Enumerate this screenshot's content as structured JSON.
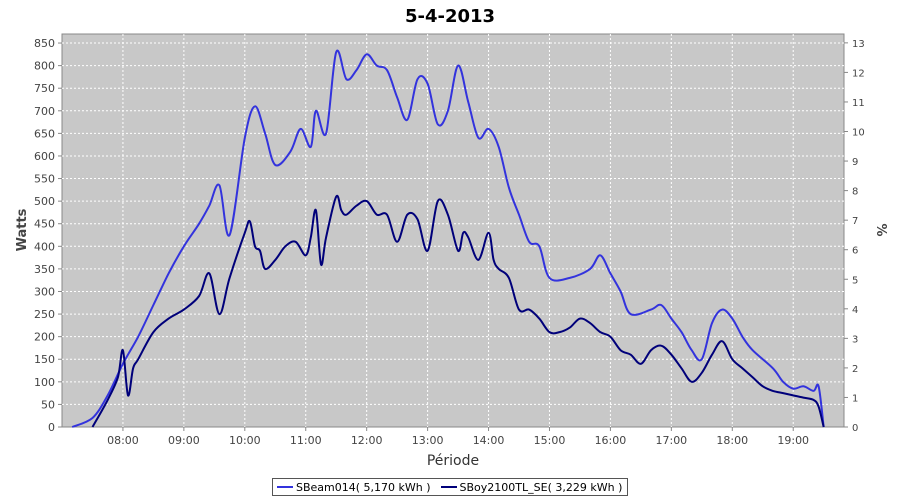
{
  "chart_data": {
    "type": "line",
    "title": "5-4-2013",
    "xlabel": "Période",
    "ylabel": "Watts",
    "y2label": "%",
    "x_ticks": [
      "08:00",
      "09:00",
      "10:00",
      "11:00",
      "12:00",
      "13:00",
      "14:00",
      "15:00",
      "16:00",
      "17:00",
      "18:00",
      "19:00"
    ],
    "y_ticks": [
      "0",
      "50",
      "100",
      "150",
      "200",
      "250",
      "300",
      "350",
      "400",
      "450",
      "500",
      "550",
      "600",
      "650",
      "700",
      "750",
      "800",
      "850"
    ],
    "y2_ticks": [
      "0",
      "1",
      "2",
      "3",
      "4",
      "5",
      "6",
      "7",
      "8",
      "9",
      "10",
      "11",
      "12",
      "13"
    ],
    "xlim": [
      "07:00",
      "19:50"
    ],
    "ylim": [
      0,
      870
    ],
    "y2lim": [
      0,
      13.3
    ],
    "grid": true,
    "legend_position": "bottom",
    "series": [
      {
        "name": "SBeam014( 5,170 kWh )",
        "color": "#3333dd",
        "x": [
          "07:10",
          "07:30",
          "07:45",
          "08:00",
          "08:15",
          "08:30",
          "08:45",
          "09:00",
          "09:15",
          "09:25",
          "09:35",
          "09:45",
          "10:00",
          "10:10",
          "10:20",
          "10:30",
          "10:45",
          "10:55",
          "11:05",
          "11:10",
          "11:20",
          "11:30",
          "11:40",
          "11:50",
          "12:00",
          "12:10",
          "12:20",
          "12:30",
          "12:40",
          "12:50",
          "13:00",
          "13:10",
          "13:20",
          "13:30",
          "13:40",
          "13:50",
          "14:00",
          "14:10",
          "14:20",
          "14:30",
          "14:40",
          "14:50",
          "15:00",
          "15:20",
          "15:40",
          "15:50",
          "16:00",
          "16:10",
          "16:20",
          "16:40",
          "16:50",
          "17:00",
          "17:10",
          "17:20",
          "17:30",
          "17:40",
          "17:50",
          "18:00",
          "18:10",
          "18:20",
          "18:40",
          "18:50",
          "19:00",
          "19:10",
          "19:20",
          "19:25",
          "19:30"
        ],
        "values": [
          0,
          20,
          70,
          140,
          200,
          270,
          340,
          400,
          450,
          490,
          535,
          425,
          640,
          710,
          650,
          580,
          610,
          660,
          620,
          700,
          650,
          830,
          770,
          790,
          825,
          800,
          790,
          730,
          680,
          770,
          760,
          670,
          700,
          800,
          720,
          640,
          660,
          620,
          530,
          470,
          410,
          400,
          330,
          330,
          350,
          380,
          340,
          300,
          250,
          260,
          270,
          240,
          210,
          170,
          150,
          230,
          260,
          240,
          200,
          170,
          130,
          100,
          85,
          90,
          80,
          90,
          0
        ]
      },
      {
        "name": "SBoy2100TL_SE( 3,229 kWh )",
        "color": "#00007a",
        "x": [
          "07:30",
          "07:45",
          "07:55",
          "08:00",
          "08:05",
          "08:10",
          "08:15",
          "08:30",
          "08:45",
          "09:00",
          "09:15",
          "09:25",
          "09:35",
          "09:45",
          "10:00",
          "10:05",
          "10:10",
          "10:15",
          "10:20",
          "10:30",
          "10:40",
          "10:50",
          "11:00",
          "11:05",
          "11:10",
          "11:15",
          "11:20",
          "11:30",
          "11:35",
          "11:40",
          "11:50",
          "12:00",
          "12:10",
          "12:20",
          "12:30",
          "12:40",
          "12:50",
          "13:00",
          "13:10",
          "13:20",
          "13:30",
          "13:35",
          "13:40",
          "13:50",
          "14:00",
          "14:05",
          "14:10",
          "14:20",
          "14:30",
          "14:40",
          "14:50",
          "15:00",
          "15:10",
          "15:20",
          "15:30",
          "15:40",
          "15:50",
          "16:00",
          "16:10",
          "16:20",
          "16:30",
          "16:40",
          "16:50",
          "17:00",
          "17:10",
          "17:20",
          "17:30",
          "17:40",
          "17:50",
          "18:00",
          "18:10",
          "18:20",
          "18:30",
          "18:40",
          "18:50",
          "19:00",
          "19:10",
          "19:20",
          "19:25",
          "19:30"
        ],
        "values": [
          0,
          60,
          110,
          170,
          70,
          130,
          150,
          210,
          240,
          260,
          290,
          340,
          250,
          330,
          430,
          455,
          400,
          390,
          350,
          370,
          400,
          410,
          380,
          420,
          480,
          360,
          420,
          510,
          480,
          470,
          490,
          500,
          470,
          470,
          410,
          470,
          460,
          390,
          500,
          470,
          390,
          430,
          420,
          370,
          430,
          370,
          350,
          330,
          260,
          260,
          240,
          210,
          210,
          220,
          240,
          230,
          210,
          200,
          170,
          160,
          140,
          170,
          180,
          160,
          130,
          100,
          120,
          160,
          190,
          150,
          130,
          110,
          90,
          80,
          75,
          70,
          65,
          60,
          45,
          0
        ]
      }
    ]
  }
}
